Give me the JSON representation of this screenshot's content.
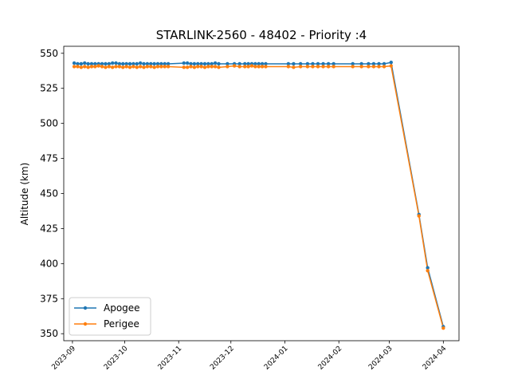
{
  "chart_data": {
    "type": "line",
    "title": "STARLINK-2560 - 48402 - Priority :4",
    "xlabel": "",
    "ylabel": "Altitude (km)",
    "x_ticks": [
      "2023-09",
      "2023-10",
      "2023-11",
      "2023-12",
      "2024-01",
      "2024-02",
      "2024-03",
      "2024-04"
    ],
    "y_ticks": [
      350,
      375,
      400,
      425,
      450,
      475,
      500,
      525,
      550
    ],
    "xlim": [
      "2023-08-27",
      "2024-04-10"
    ],
    "ylim": [
      345,
      555
    ],
    "grid": false,
    "legend_position": "lower-left",
    "series": [
      {
        "name": "Apogee",
        "color": "#1f77b4",
        "points": [
          [
            "2023-09-02",
            543
          ],
          [
            "2023-09-04",
            542.5
          ],
          [
            "2023-09-06",
            542.5
          ],
          [
            "2023-09-08",
            543
          ],
          [
            "2023-09-10",
            542.5
          ],
          [
            "2023-09-12",
            542.5
          ],
          [
            "2023-09-14",
            542.5
          ],
          [
            "2023-09-16",
            542.5
          ],
          [
            "2023-09-18",
            542.5
          ],
          [
            "2023-09-20",
            542.5
          ],
          [
            "2023-09-22",
            542.5
          ],
          [
            "2023-09-24",
            543
          ],
          [
            "2023-09-26",
            543
          ],
          [
            "2023-09-28",
            542.5
          ],
          [
            "2023-09-30",
            542.5
          ],
          [
            "2023-10-02",
            542.5
          ],
          [
            "2023-10-04",
            542.5
          ],
          [
            "2023-10-06",
            542.5
          ],
          [
            "2023-10-08",
            542.5
          ],
          [
            "2023-10-10",
            543
          ],
          [
            "2023-10-12",
            542.5
          ],
          [
            "2023-10-14",
            542.5
          ],
          [
            "2023-10-16",
            542.5
          ],
          [
            "2023-10-18",
            542.5
          ],
          [
            "2023-10-20",
            542.5
          ],
          [
            "2023-10-22",
            542.5
          ],
          [
            "2023-10-24",
            542.5
          ],
          [
            "2023-10-26",
            542.5
          ],
          [
            "2023-11-04",
            543
          ],
          [
            "2023-11-06",
            543
          ],
          [
            "2023-11-08",
            542.5
          ],
          [
            "2023-11-10",
            542.5
          ],
          [
            "2023-11-12",
            542.5
          ],
          [
            "2023-11-14",
            542.5
          ],
          [
            "2023-11-16",
            542.5
          ],
          [
            "2023-11-18",
            542.5
          ],
          [
            "2023-11-20",
            542.5
          ],
          [
            "2023-11-22",
            543
          ],
          [
            "2023-11-24",
            542.5
          ],
          [
            "2023-11-29",
            542.5
          ],
          [
            "2023-12-03",
            542.5
          ],
          [
            "2023-12-06",
            542.5
          ],
          [
            "2023-12-09",
            542.5
          ],
          [
            "2023-12-11",
            542.5
          ],
          [
            "2023-12-13",
            542.5
          ],
          [
            "2023-12-15",
            542.5
          ],
          [
            "2023-12-17",
            542.5
          ],
          [
            "2023-12-19",
            542.5
          ],
          [
            "2023-12-21",
            542.5
          ],
          [
            "2024-01-03",
            542.5
          ],
          [
            "2024-01-06",
            542.5
          ],
          [
            "2024-01-10",
            542.5
          ],
          [
            "2024-01-14",
            542.5
          ],
          [
            "2024-01-17",
            542.5
          ],
          [
            "2024-01-20",
            542.5
          ],
          [
            "2024-01-23",
            542.5
          ],
          [
            "2024-01-26",
            542.5
          ],
          [
            "2024-01-29",
            542.5
          ],
          [
            "2024-02-09",
            542.5
          ],
          [
            "2024-02-14",
            542.5
          ],
          [
            "2024-02-18",
            542.5
          ],
          [
            "2024-02-21",
            542.5
          ],
          [
            "2024-02-24",
            542.5
          ],
          [
            "2024-02-27",
            542.5
          ],
          [
            "2024-03-02",
            543.5
          ],
          [
            "2024-03-18",
            435
          ],
          [
            "2024-03-23",
            397
          ],
          [
            "2024-04-01",
            355
          ]
        ]
      },
      {
        "name": "Perigee",
        "color": "#ff7f0e",
        "points": [
          [
            "2023-09-02",
            540.5
          ],
          [
            "2023-09-04",
            540.5
          ],
          [
            "2023-09-06",
            540
          ],
          [
            "2023-09-08",
            540.5
          ],
          [
            "2023-09-10",
            540
          ],
          [
            "2023-09-12",
            540.5
          ],
          [
            "2023-09-14",
            540.5
          ],
          [
            "2023-09-16",
            541
          ],
          [
            "2023-09-18",
            540.5
          ],
          [
            "2023-09-20",
            540
          ],
          [
            "2023-09-22",
            540.5
          ],
          [
            "2023-09-24",
            540
          ],
          [
            "2023-09-26",
            540.5
          ],
          [
            "2023-09-28",
            540.5
          ],
          [
            "2023-09-30",
            540
          ],
          [
            "2023-10-02",
            540.5
          ],
          [
            "2023-10-04",
            540
          ],
          [
            "2023-10-06",
            540.5
          ],
          [
            "2023-10-08",
            540
          ],
          [
            "2023-10-10",
            540.5
          ],
          [
            "2023-10-12",
            540
          ],
          [
            "2023-10-14",
            540.5
          ],
          [
            "2023-10-16",
            540.5
          ],
          [
            "2023-10-18",
            540
          ],
          [
            "2023-10-20",
            540.5
          ],
          [
            "2023-10-22",
            540.5
          ],
          [
            "2023-10-24",
            540.5
          ],
          [
            "2023-10-26",
            540.5
          ],
          [
            "2023-11-04",
            540
          ],
          [
            "2023-11-06",
            540
          ],
          [
            "2023-11-08",
            540.5
          ],
          [
            "2023-11-10",
            540
          ],
          [
            "2023-11-12",
            540.5
          ],
          [
            "2023-11-14",
            540.5
          ],
          [
            "2023-11-16",
            540
          ],
          [
            "2023-11-18",
            540.5
          ],
          [
            "2023-11-20",
            540.5
          ],
          [
            "2023-11-22",
            540.5
          ],
          [
            "2023-11-24",
            540
          ],
          [
            "2023-11-29",
            540.5
          ],
          [
            "2023-12-03",
            541
          ],
          [
            "2023-12-06",
            540.5
          ],
          [
            "2023-12-09",
            540.5
          ],
          [
            "2023-12-11",
            540.5
          ],
          [
            "2023-12-13",
            541
          ],
          [
            "2023-12-15",
            540.5
          ],
          [
            "2023-12-17",
            540.5
          ],
          [
            "2023-12-19",
            540.5
          ],
          [
            "2023-12-21",
            540.5
          ],
          [
            "2024-01-03",
            540.5
          ],
          [
            "2024-01-06",
            540
          ],
          [
            "2024-01-10",
            540.5
          ],
          [
            "2024-01-14",
            540.5
          ],
          [
            "2024-01-17",
            540.5
          ],
          [
            "2024-01-20",
            540.5
          ],
          [
            "2024-01-23",
            540.5
          ],
          [
            "2024-01-26",
            540.5
          ],
          [
            "2024-01-29",
            540.5
          ],
          [
            "2024-02-09",
            540.5
          ],
          [
            "2024-02-14",
            540.5
          ],
          [
            "2024-02-18",
            540.5
          ],
          [
            "2024-02-21",
            540.5
          ],
          [
            "2024-02-24",
            540.5
          ],
          [
            "2024-02-27",
            540.5
          ],
          [
            "2024-03-02",
            541
          ],
          [
            "2024-03-18",
            434
          ],
          [
            "2024-03-23",
            395
          ],
          [
            "2024-04-01",
            354
          ]
        ]
      }
    ]
  }
}
